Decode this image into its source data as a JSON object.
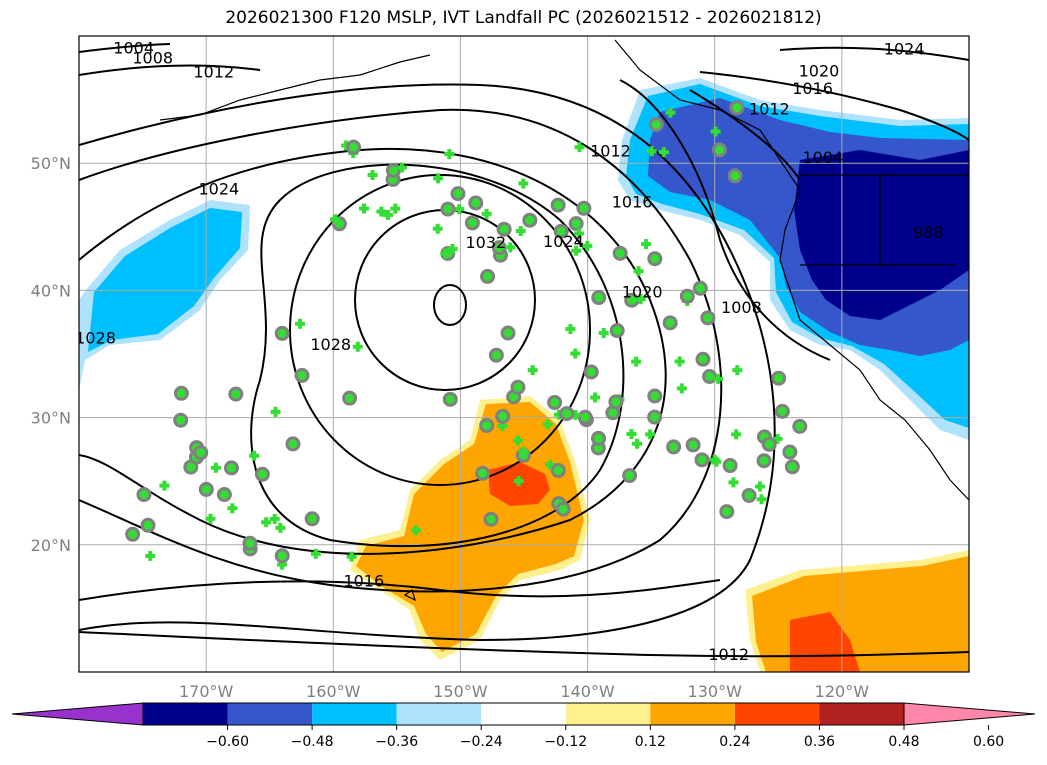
{
  "title": "2026021300 F120 MSLP, IVT Landfall PC (2026021512 - 2026021812)",
  "map": {
    "lon_range": [
      -180,
      -110
    ],
    "lat_range": [
      10,
      60
    ],
    "lon_ticks": [
      {
        "value": -170,
        "label": "170°W"
      },
      {
        "value": -160,
        "label": "160°W"
      },
      {
        "value": -150,
        "label": "150°W"
      },
      {
        "value": -140,
        "label": "140°W"
      },
      {
        "value": -130,
        "label": "130°W"
      },
      {
        "value": -120,
        "label": "120°W"
      }
    ],
    "lat_ticks": [
      {
        "value": 20,
        "label": "20°N"
      },
      {
        "value": 30,
        "label": "30°N"
      },
      {
        "value": 40,
        "label": "40°N"
      },
      {
        "value": 50,
        "label": "50°N"
      }
    ],
    "grid": true,
    "coastline_color": "#000000"
  },
  "isobar_labels": [
    {
      "text": "1004",
      "lon": -175.7,
      "lat": 59.1
    },
    {
      "text": "1008",
      "lon": -174.2,
      "lat": 58.3
    },
    {
      "text": "1012",
      "lon": -169.4,
      "lat": 57.2
    },
    {
      "text": "1024",
      "lon": -169.0,
      "lat": 48.0
    },
    {
      "text": "1028",
      "lon": -178.7,
      "lat": 36.3
    },
    {
      "text": "1028",
      "lon": -160.2,
      "lat": 35.8
    },
    {
      "text": "1032",
      "lon": -148.0,
      "lat": 43.8
    },
    {
      "text": "1024",
      "lon": -141.9,
      "lat": 43.9
    },
    {
      "text": "1020",
      "lon": -135.7,
      "lat": 39.9
    },
    {
      "text": "1016",
      "lon": -136.5,
      "lat": 47.0
    },
    {
      "text": "1012",
      "lon": -138.2,
      "lat": 51.0
    },
    {
      "text": "1008",
      "lon": -127.9,
      "lat": 38.7
    },
    {
      "text": "1004",
      "lon": -121.5,
      "lat": 50.5
    },
    {
      "text": "1024",
      "lon": -115.1,
      "lat": 59.0
    },
    {
      "text": "1020",
      "lon": -121.8,
      "lat": 57.3
    },
    {
      "text": "1016",
      "lon": -122.3,
      "lat": 55.9
    },
    {
      "text": "1012",
      "lon": -125.7,
      "lat": 54.3
    },
    {
      "text": "1016",
      "lon": -157.6,
      "lat": 17.2
    },
    {
      "text": "1012",
      "lon": -128.9,
      "lat": 11.4
    },
    {
      "text": "988",
      "lon": -113.2,
      "lat": 44.6
    }
  ],
  "colorbar": {
    "colors": [
      "#9932cc",
      "#00008b",
      "#3557cb",
      "#00bfff",
      "#afe2fc",
      "#ffffff",
      "#fff08f",
      "#ffa500",
      "#ff4500",
      "#b22222",
      "#ff88aa"
    ],
    "labels": [
      "−0.60",
      "−0.48",
      "−0.36",
      "−0.24",
      "−0.12",
      "0.12",
      "0.24",
      "0.36",
      "0.48",
      "0.60"
    ]
  },
  "colors": {
    "marker_fill": "#33dd33",
    "marker_edge": "#808080",
    "cross_color": "#33dd33",
    "ocean": "#ffffff"
  }
}
